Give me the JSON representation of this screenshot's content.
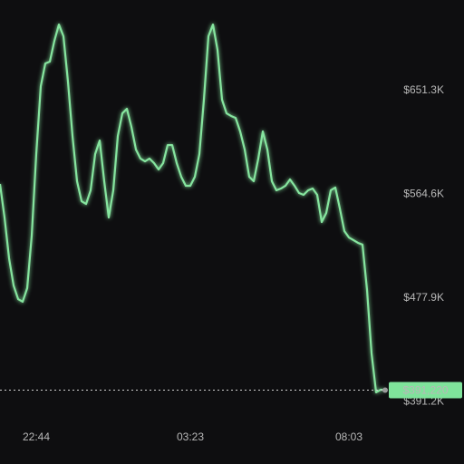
{
  "chart_data": {
    "type": "line",
    "categories": [
      null,
      null,
      null,
      null,
      null,
      null,
      null,
      null,
      "22:44",
      null,
      null,
      null,
      null,
      null,
      null,
      null,
      null,
      null,
      null,
      null,
      null,
      null,
      null,
      null,
      null,
      null,
      null,
      null,
      null,
      null,
      null,
      null,
      null,
      null,
      null,
      null,
      null,
      null,
      null,
      null,
      null,
      null,
      "03:23",
      null,
      null,
      null,
      null,
      null,
      null,
      null,
      null,
      null,
      null,
      null,
      null,
      null,
      null,
      null,
      null,
      null,
      null,
      null,
      null,
      null,
      null,
      null,
      null,
      null,
      null,
      null,
      null,
      null,
      null,
      null,
      null,
      null,
      null,
      "08:03",
      null,
      null,
      null,
      null,
      null,
      null,
      null,
      null
    ],
    "values": [
      563500,
      535500,
      501400,
      478700,
      467300,
      465100,
      476400,
      520300,
      588500,
      645200,
      664200,
      665700,
      683100,
      696700,
      686900,
      649000,
      603600,
      565800,
      549100,
      546800,
      558200,
      588500,
      599800,
      565800,
      535500,
      558200,
      603600,
      622500,
      626300,
      611200,
      592300,
      584700,
      582400,
      584700,
      580900,
      575600,
      580900,
      596000,
      596000,
      580900,
      569500,
      562000,
      562000,
      569500,
      588500,
      633900,
      686900,
      696700,
      675500,
      633900,
      622500,
      620300,
      618700,
      607400,
      592300,
      569500,
      565800,
      584700,
      607400,
      592300,
      565800,
      558200,
      559700,
      562000,
      567300,
      562000,
      555900,
      554400,
      558200,
      559700,
      554400,
      531700,
      539300,
      558200,
      560500,
      543000,
      524100,
      518800,
      516600,
      514300,
      512800,
      474900,
      421900,
      389400,
      391600,
      391220
    ],
    "value_labels": [
      null,
      null,
      null,
      null,
      null,
      null,
      null,
      null,
      null,
      null,
      null,
      null,
      null,
      null,
      null,
      null,
      null,
      null,
      null,
      null,
      null,
      null,
      null,
      null,
      null,
      null,
      null,
      null,
      null,
      null,
      null,
      null,
      null,
      null,
      null,
      null,
      null,
      null,
      null,
      null,
      null,
      null,
      null,
      null,
      null,
      null,
      null,
      null,
      null,
      null,
      null,
      null,
      null,
      null,
      null,
      null,
      null,
      null,
      null,
      null,
      null,
      null,
      null,
      null,
      null,
      null,
      null,
      null,
      null,
      null,
      null,
      null,
      null,
      null,
      null,
      null,
      null,
      null,
      null,
      null,
      null,
      null,
      null,
      null,
      null,
      "$391,220"
    ],
    "color": "#86e59f",
    "ylim": [
      368900,
      717200
    ],
    "yticks": [
      {
        "value": 391200,
        "label": "$391.2K"
      },
      {
        "value": 477900,
        "label": "$477.9K"
      },
      {
        "value": 564600,
        "label": "$564.6K"
      },
      {
        "value": 651300,
        "label": "$651.3K"
      }
    ]
  }
}
